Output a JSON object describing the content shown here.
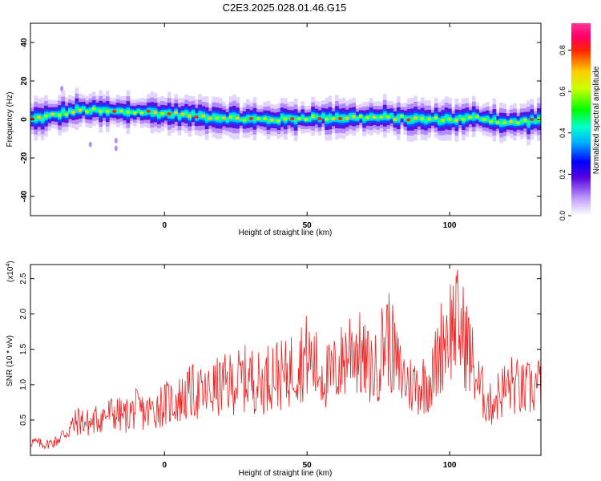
{
  "title": "C2E3.2025.028.01.46.G15",
  "chart_data": [
    {
      "type": "heatmap",
      "xlabel": "Height of straight line (km)",
      "ylabel": "Frequency (Hz)",
      "xlim": [
        -47,
        132
      ],
      "ylim": [
        -50,
        50
      ],
      "xticks": [
        0,
        50,
        100
      ],
      "yticks": [
        -40,
        -20,
        0,
        20,
        40
      ],
      "colorbar": {
        "label": "Normalized spectral amplitude",
        "range": [
          0,
          0.93
        ],
        "ticks": [
          0.0,
          0.2,
          0.4,
          0.6,
          0.8
        ]
      },
      "center_frequency_hz": {
        "x": [
          -47,
          -40,
          -30,
          -20,
          -10,
          0,
          10,
          20,
          30,
          40,
          50,
          60,
          70,
          80,
          90,
          100,
          110,
          120,
          132
        ],
        "y": [
          0,
          2,
          5,
          4,
          4,
          3,
          2,
          1,
          0,
          0,
          1,
          1,
          1,
          1,
          0,
          0,
          1,
          -2,
          0
        ]
      }
    },
    {
      "type": "line",
      "xlabel": "Height of straight line (km)",
      "ylabel": "SNR (10 * v/v)",
      "y_scale_label": "(x10",
      "y_scale_exponent": "4",
      "xlim": [
        -47,
        132
      ],
      "ylim": [
        0,
        2.7
      ],
      "xticks": [
        0,
        50,
        100
      ],
      "yticks": [
        0.5,
        1.0,
        1.5,
        2.0,
        2.5
      ],
      "line_color": "#ee2222",
      "series": [
        {
          "x": [
            -47,
            -42,
            -38,
            -34,
            -30,
            -26,
            -22,
            -18,
            -14,
            -10,
            -6,
            -2,
            2,
            6,
            10,
            14,
            18,
            22,
            26,
            30,
            34,
            38,
            42,
            46,
            50,
            54,
            58,
            62,
            66,
            70,
            74,
            78,
            82,
            86,
            90,
            94,
            98,
            102,
            106,
            110,
            114,
            118,
            122,
            126,
            132
          ],
          "values": [
            0.2,
            0.15,
            0.2,
            0.35,
            0.5,
            0.45,
            0.55,
            0.6,
            0.55,
            0.65,
            0.6,
            0.7,
            0.75,
            0.8,
            0.9,
            0.85,
            0.95,
            1.0,
            1.05,
            1.1,
            1.0,
            1.2,
            1.1,
            1.3,
            1.4,
            1.2,
            1.1,
            1.3,
            1.6,
            1.3,
            1.2,
            1.75,
            1.2,
            1.0,
            1.0,
            1.1,
            1.7,
            1.9,
            1.6,
            1.0,
            0.7,
            0.9,
            1.0,
            0.9,
            1.0
          ]
        }
      ]
    }
  ]
}
